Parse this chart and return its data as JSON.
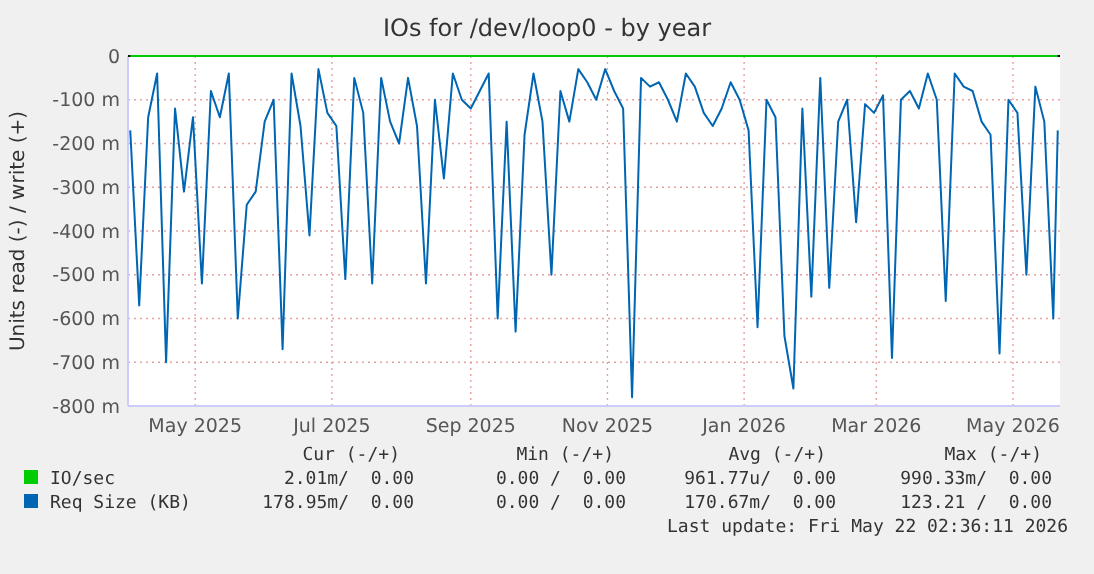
{
  "chart_data": {
    "type": "line",
    "title": "IOs for /dev/loop0 - by year",
    "ylabel": "Units read (-) / write (+)",
    "xlim": [
      "2025-04-01",
      "2026-05-22"
    ],
    "xticks": [
      {
        "value": "2025-05-01",
        "label": "May 2025"
      },
      {
        "value": "2025-07-01",
        "label": "Jul 2025"
      },
      {
        "value": "2025-09-01",
        "label": "Sep 2025"
      },
      {
        "value": "2025-11-01",
        "label": "Nov 2025"
      },
      {
        "value": "2026-01-01",
        "label": "Jan 2026"
      },
      {
        "value": "2026-03-01",
        "label": "Mar 2026"
      },
      {
        "value": "2026-05-01",
        "label": "May 2026"
      }
    ],
    "ylim": [
      -800,
      0
    ],
    "yticks": [
      {
        "value": -800,
        "label": "-800 m"
      },
      {
        "value": -700,
        "label": "-700 m"
      },
      {
        "value": -600,
        "label": "-600 m"
      },
      {
        "value": -500,
        "label": "-500 m"
      },
      {
        "value": -400,
        "label": "-400 m"
      },
      {
        "value": -300,
        "label": "-300 m"
      },
      {
        "value": -200,
        "label": "-200 m"
      },
      {
        "value": -100,
        "label": "-100 m"
      },
      0
    ],
    "grid": true,
    "legend": "bottom",
    "x": [
      "2025-04-02",
      "2025-04-06",
      "2025-04-10",
      "2025-04-14",
      "2025-04-18",
      "2025-04-22",
      "2025-04-26",
      "2025-04-30",
      "2025-05-04",
      "2025-05-08",
      "2025-05-12",
      "2025-05-16",
      "2025-05-20",
      "2025-05-24",
      "2025-05-28",
      "2025-06-01",
      "2025-06-05",
      "2025-06-09",
      "2025-06-13",
      "2025-06-17",
      "2025-06-21",
      "2025-06-25",
      "2025-06-29",
      "2025-07-03",
      "2025-07-07",
      "2025-07-11",
      "2025-07-15",
      "2025-07-19",
      "2025-07-23",
      "2025-07-27",
      "2025-07-31",
      "2025-08-04",
      "2025-08-08",
      "2025-08-12",
      "2025-08-16",
      "2025-08-20",
      "2025-08-24",
      "2025-08-28",
      "2025-09-01",
      "2025-09-05",
      "2025-09-09",
      "2025-09-13",
      "2025-09-17",
      "2025-09-21",
      "2025-09-25",
      "2025-09-29",
      "2025-10-03",
      "2025-10-07",
      "2025-10-11",
      "2025-10-15",
      "2025-10-19",
      "2025-10-23",
      "2025-10-27",
      "2025-10-31",
      "2025-11-04",
      "2025-11-08",
      "2025-11-12",
      "2025-11-16",
      "2025-11-20",
      "2025-11-24",
      "2025-11-28",
      "2025-12-02",
      "2025-12-06",
      "2025-12-10",
      "2025-12-14",
      "2025-12-18",
      "2025-12-22",
      "2025-12-26",
      "2025-12-30",
      "2026-01-03",
      "2026-01-07",
      "2026-01-11",
      "2026-01-15",
      "2026-01-19",
      "2026-01-23",
      "2026-01-27",
      "2026-01-31",
      "2026-02-04",
      "2026-02-08",
      "2026-02-12",
      "2026-02-16",
      "2026-02-20",
      "2026-02-24",
      "2026-02-28",
      "2026-03-04",
      "2026-03-08",
      "2026-03-12",
      "2026-03-16",
      "2026-03-20",
      "2026-03-24",
      "2026-03-28",
      "2026-04-01",
      "2026-04-05",
      "2026-04-09",
      "2026-04-13",
      "2026-04-17",
      "2026-04-21",
      "2026-04-25",
      "2026-04-29",
      "2026-05-03",
      "2026-05-07",
      "2026-05-11",
      "2026-05-15",
      "2026-05-19",
      "2026-05-21"
    ],
    "series": [
      {
        "name": "IO/sec",
        "color": "#00cc00",
        "x": [
          "2025-04-02",
          "2026-05-21"
        ],
        "values": [
          0,
          0
        ]
      },
      {
        "name": "Req Size (KB)",
        "color": "#0066b3",
        "values": [
          -170,
          -570,
          -140,
          -40,
          -700,
          -120,
          -310,
          -140,
          -520,
          -80,
          -140,
          -40,
          -600,
          -340,
          -310,
          -150,
          -100,
          -670,
          -40,
          -160,
          -410,
          -30,
          -130,
          -160,
          -510,
          -50,
          -130,
          -520,
          -50,
          -150,
          -200,
          -50,
          -160,
          -520,
          -100,
          -280,
          -40,
          -100,
          -120,
          -80,
          -40,
          -600,
          -150,
          -630,
          -180,
          -40,
          -150,
          -500,
          -80,
          -150,
          -30,
          -60,
          -100,
          -30,
          -80,
          -120,
          -780,
          -50,
          -70,
          -60,
          -100,
          -150,
          -40,
          -70,
          -130,
          -160,
          -120,
          -60,
          -100,
          -170,
          -620,
          -100,
          -140,
          -640,
          -760,
          -120,
          -550,
          -50,
          -530,
          -150,
          -100,
          -380,
          -110,
          -130,
          -90,
          -690,
          -100,
          -80,
          -120,
          -40,
          -100,
          -560,
          -40,
          -70,
          -80,
          -150,
          -180,
          -680,
          -100,
          -130,
          -500,
          -70,
          -150,
          -600,
          -170
        ]
      }
    ],
    "annotations": [
      "Cur (-/+)",
      "Min (-/+)",
      "Avg (-/+)",
      "Max (-/+)",
      "2.01m/  0.00",
      "0.00 /  0.00",
      "961.77u/  0.00",
      "990.33m/  0.00",
      "178.95m/  0.00",
      "0.00 /  0.00",
      "170.67m/  0.00",
      "123.21 /  0.00",
      "Last update: Fri May 22 02:36:11 2026"
    ]
  }
}
